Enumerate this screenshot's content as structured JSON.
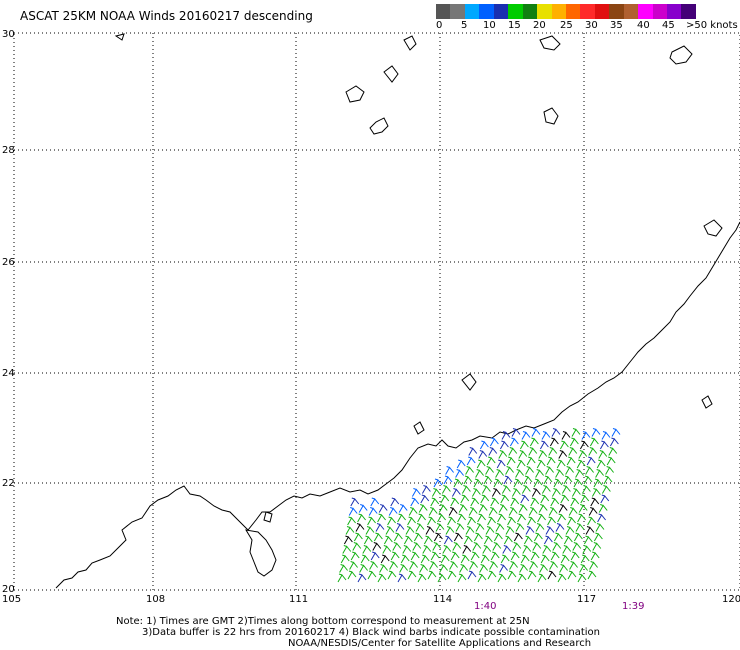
{
  "title": "ASCAT 25KM NOAA Winds 20160217 descending",
  "scale": {
    "colors": [
      "#555555",
      "#777777",
      "#00a8ff",
      "#0060ff",
      "#1a2fb0",
      "#00cc00",
      "#108010",
      "#e8e000",
      "#ffb000",
      "#ff6600",
      "#ff2a2a",
      "#e01010",
      "#8b4513",
      "#b06030",
      "#ff00ff",
      "#cc00cc",
      "#8800cc",
      "#440077"
    ],
    "labels": [
      "0",
      "5",
      "10",
      "15",
      "20",
      "25",
      "30",
      "35",
      "40",
      "45",
      ">50 knots"
    ]
  },
  "map": {
    "lon_ticks": [
      "105",
      "108",
      "111",
      "114",
      "117",
      "120"
    ],
    "lat_ticks": [
      "20",
      "22",
      "24",
      "26",
      "28",
      "30"
    ],
    "pass_times": [
      "1:40",
      "1:39"
    ],
    "time_color": "#800080"
  },
  "notes": {
    "line1": "Note: 1) Times are GMT 2)Times along bottom correspond to measurement at 25N",
    "line2": "3)Data buffer is 22 hrs from 20160217 4) Black wind barbs indicate possible contamination",
    "line3": "NOAA/NESDIS/Center for Satellite Applications and Research"
  }
}
